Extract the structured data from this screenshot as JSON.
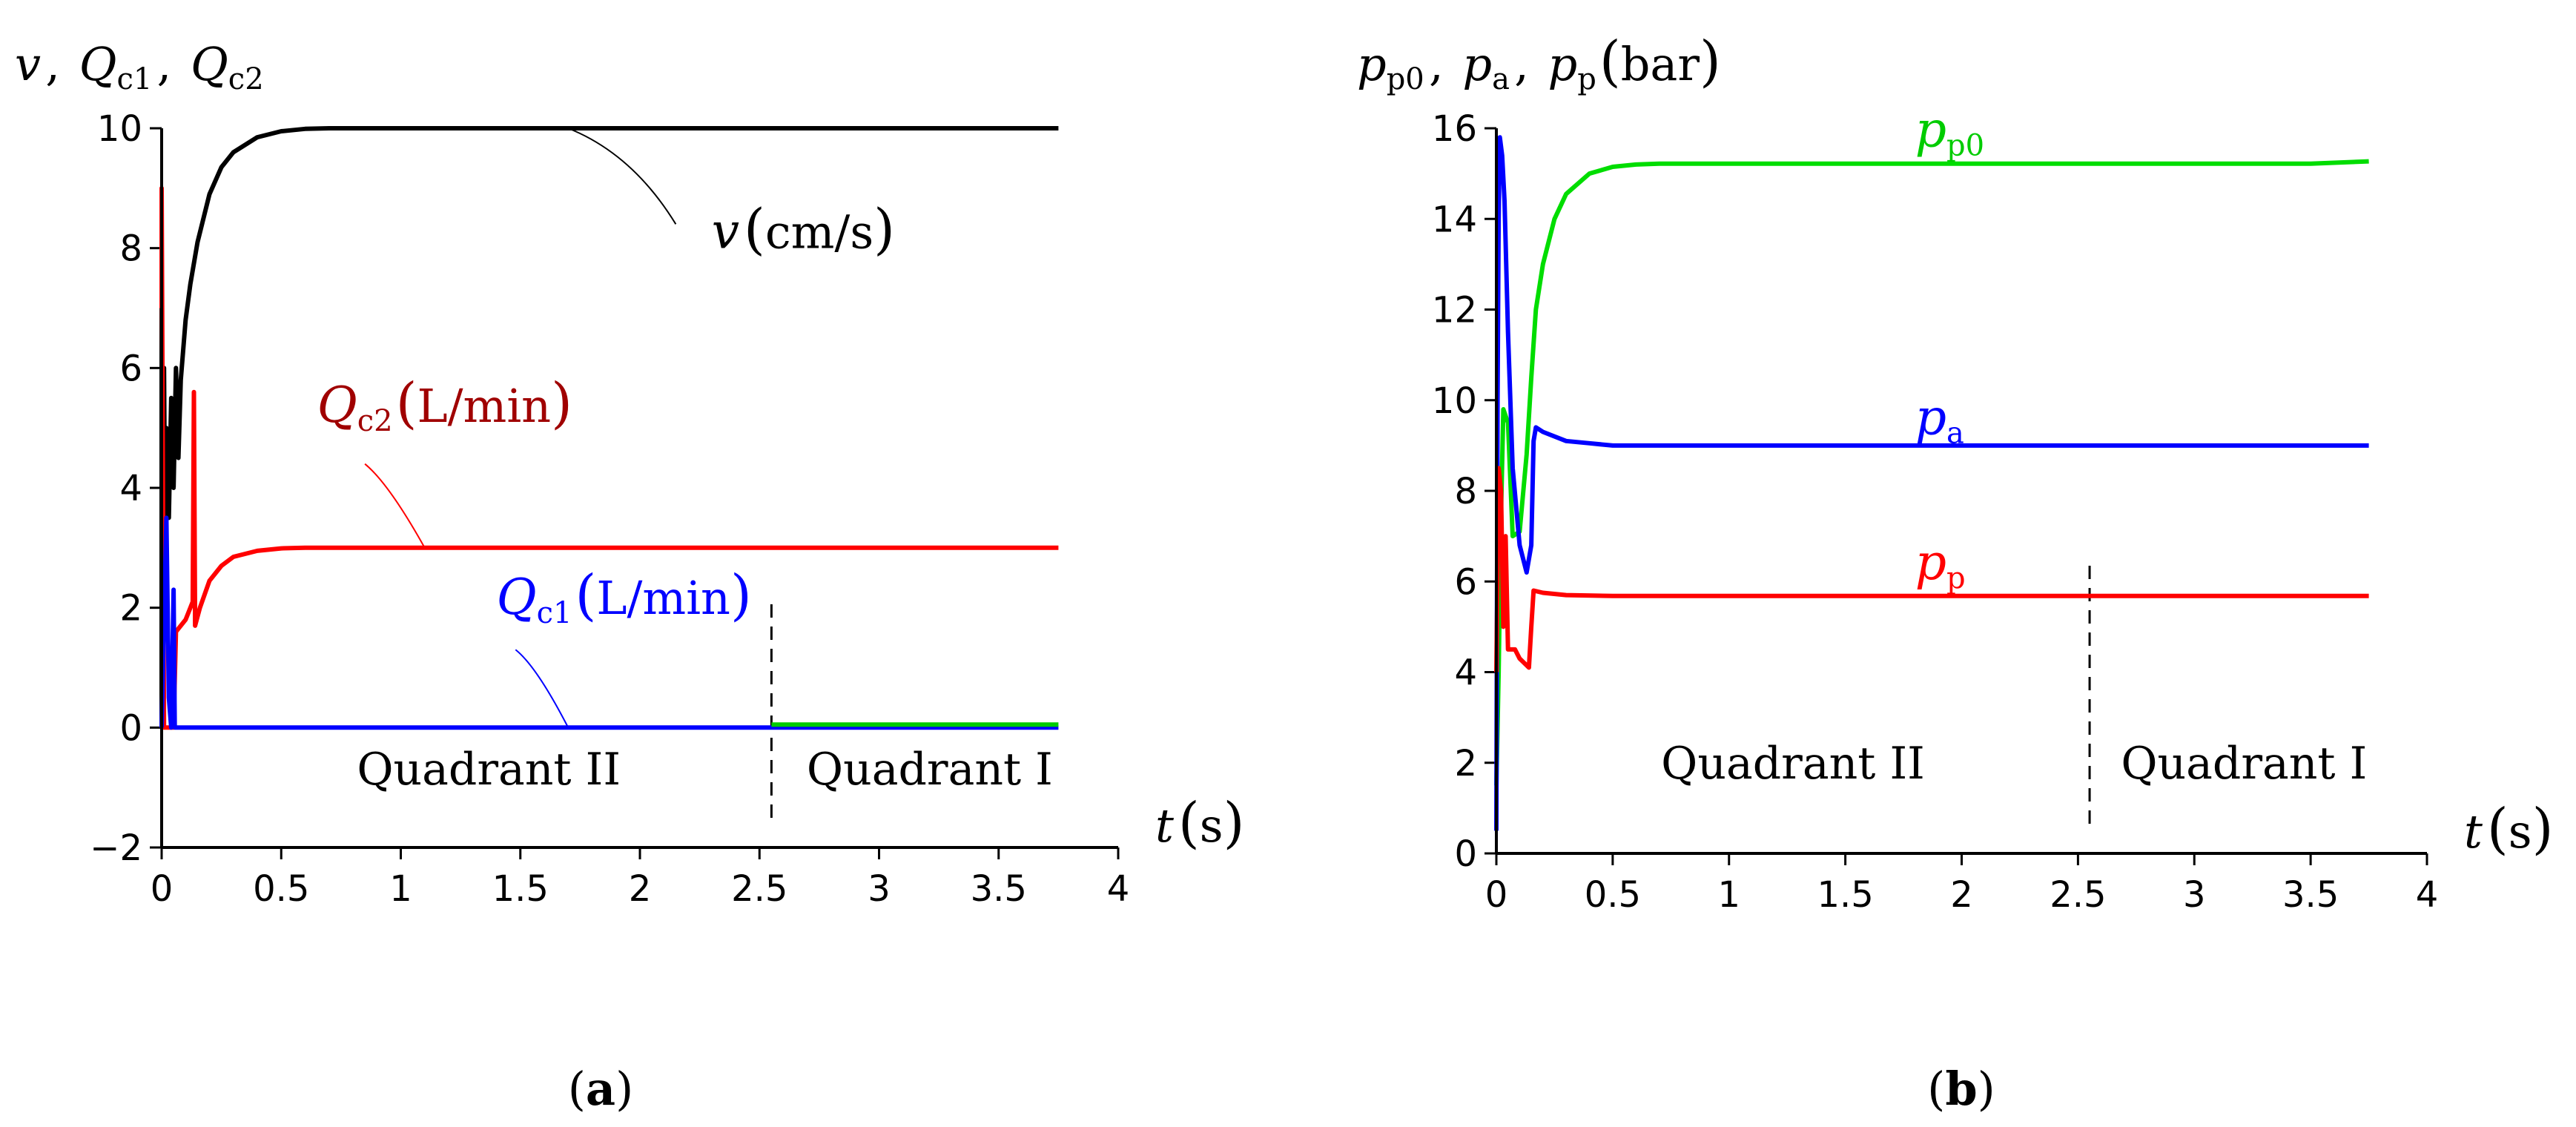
{
  "chart_data": [
    {
      "panel": "(a)",
      "panel_letter": "a",
      "type": "line",
      "ylabel": "v , Qc1 , Qc2",
      "ylabel_parts": {
        "v": "v",
        "Q": "Q",
        "c1": "c1",
        "c2": "c2"
      },
      "xlabel": "t (s)",
      "xlabel_parts": {
        "t": "t",
        "unit": "s"
      },
      "xlim": [
        0,
        4
      ],
      "ylim": [
        -2,
        10
      ],
      "x_ticks": [
        "0",
        "0.5",
        "1",
        "1.5",
        "2",
        "2.5",
        "3",
        "3.5",
        "4"
      ],
      "y_ticks": [
        "−2",
        "0",
        "2",
        "4",
        "6",
        "8",
        "10"
      ],
      "regions": [
        {
          "label": "Quadrant II",
          "x_start": 0,
          "x_end": 2.55
        },
        {
          "label": "Quadrant I",
          "x_start": 2.55,
          "x_end": 3.75
        }
      ],
      "divider_x": 2.55,
      "series": [
        {
          "label_var": "v",
          "label_sub": "",
          "label_unit": "cm/s",
          "color": "#000000",
          "points": [
            [
              0,
              0
            ],
            [
              0,
              8
            ],
            [
              0.005,
              2
            ],
            [
              0.01,
              6
            ],
            [
              0.015,
              3
            ],
            [
              0.02,
              5
            ],
            [
              0.03,
              3.5
            ],
            [
              0.04,
              5.5
            ],
            [
              0.05,
              4
            ],
            [
              0.06,
              6
            ],
            [
              0.07,
              4.5
            ],
            [
              0.08,
              5.8
            ],
            [
              0.1,
              6.8
            ],
            [
              0.12,
              7.4
            ],
            [
              0.15,
              8.1
            ],
            [
              0.2,
              8.9
            ],
            [
              0.25,
              9.35
            ],
            [
              0.3,
              9.6
            ],
            [
              0.4,
              9.85
            ],
            [
              0.5,
              9.95
            ],
            [
              0.6,
              9.99
            ],
            [
              0.7,
              10
            ],
            [
              3.75,
              10
            ]
          ]
        },
        {
          "label_var": "Q",
          "label_sub": "c2",
          "label_unit": "L/min",
          "color": "#ff0000",
          "points": [
            [
              0,
              7
            ],
            [
              0,
              9
            ],
            [
              0.01,
              0
            ],
            [
              0.05,
              0
            ],
            [
              0.06,
              1.6
            ],
            [
              0.1,
              1.8
            ],
            [
              0.13,
              2.1
            ],
            [
              0.135,
              5.6
            ],
            [
              0.14,
              1.7
            ],
            [
              0.16,
              2.0
            ],
            [
              0.2,
              2.45
            ],
            [
              0.25,
              2.7
            ],
            [
              0.3,
              2.85
            ],
            [
              0.4,
              2.95
            ],
            [
              0.5,
              2.99
            ],
            [
              0.6,
              3
            ],
            [
              3.75,
              3
            ]
          ]
        },
        {
          "label_var": "Q",
          "label_sub": "c1",
          "label_unit": "L/min",
          "color": "#0000ff",
          "points": [
            [
              0,
              0
            ],
            [
              0.02,
              3.5
            ],
            [
              0.03,
              0.5
            ],
            [
              0.04,
              0
            ],
            [
              0.05,
              2.3
            ],
            [
              0.055,
              0
            ],
            [
              0.1,
              0
            ],
            [
              3.75,
              0
            ]
          ]
        },
        {
          "label_var": "",
          "label_sub": "",
          "label_unit": "",
          "color": "#00cc00",
          "points": [
            [
              2.55,
              0.05
            ],
            [
              3.75,
              0.05
            ]
          ]
        }
      ],
      "annotations": [
        {
          "series": 0,
          "text_x": 2.3,
          "text_y": 8.0,
          "leader": [
            [
              1.7,
              10
            ],
            [
              2.15,
              8.4
            ]
          ]
        },
        {
          "series": 1,
          "text_x": 0.65,
          "text_y": 5.1,
          "leader": [
            [
              1.1,
              3.0
            ],
            [
              0.85,
              4.4
            ]
          ]
        },
        {
          "series": 2,
          "text_x": 1.4,
          "text_y": 1.9,
          "leader": [
            [
              1.7,
              0
            ],
            [
              1.48,
              1.3
            ]
          ]
        }
      ]
    },
    {
      "panel": "(b)",
      "panel_letter": "b",
      "type": "line",
      "ylabel": "pp0 , pa , pp (bar)",
      "ylabel_parts": {
        "p": "p",
        "p0": "p0",
        "a": "a",
        "psub": "p",
        "unit": "bar"
      },
      "xlabel": "t (s)",
      "xlabel_parts": {
        "t": "t",
        "unit": "s"
      },
      "xlim": [
        0,
        4
      ],
      "ylim": [
        0,
        16
      ],
      "x_ticks": [
        "0",
        "0.5",
        "1",
        "1.5",
        "2",
        "2.5",
        "3",
        "3.5",
        "4"
      ],
      "y_ticks": [
        "0",
        "2",
        "4",
        "6",
        "8",
        "10",
        "12",
        "14",
        "16"
      ],
      "regions": [
        {
          "label": "Quadrant II",
          "x_start": 0,
          "x_end": 2.55
        },
        {
          "label": "Quadrant I",
          "x_start": 2.55,
          "x_end": 3.75
        }
      ],
      "divider_x": 2.55,
      "series": [
        {
          "label_var": "p",
          "label_sub": "p0",
          "label_unit": "",
          "color": "#00dd00",
          "points": [
            [
              0,
              1.5
            ],
            [
              0.01,
              4
            ],
            [
              0.02,
              7.5
            ],
            [
              0.03,
              9.8
            ],
            [
              0.05,
              9.5
            ],
            [
              0.07,
              7.0
            ],
            [
              0.1,
              7.1
            ],
            [
              0.13,
              8.8
            ],
            [
              0.15,
              10.5
            ],
            [
              0.17,
              12.0
            ],
            [
              0.2,
              13.0
            ],
            [
              0.25,
              14.0
            ],
            [
              0.3,
              14.55
            ],
            [
              0.4,
              15.0
            ],
            [
              0.5,
              15.15
            ],
            [
              0.6,
              15.2
            ],
            [
              0.7,
              15.22
            ],
            [
              3.5,
              15.22
            ],
            [
              3.75,
              15.27
            ]
          ]
        },
        {
          "label_var": "p",
          "label_sub": "a",
          "label_unit": "",
          "color": "#0000ff",
          "points": [
            [
              0,
              0.5
            ],
            [
              0.005,
              10
            ],
            [
              0.01,
              14
            ],
            [
              0.015,
              15.8
            ],
            [
              0.025,
              15.4
            ],
            [
              0.035,
              14.4
            ],
            [
              0.05,
              11.5
            ],
            [
              0.07,
              8.5
            ],
            [
              0.1,
              6.8
            ],
            [
              0.13,
              6.2
            ],
            [
              0.15,
              6.8
            ],
            [
              0.16,
              9.1
            ],
            [
              0.17,
              9.4
            ],
            [
              0.2,
              9.3
            ],
            [
              0.3,
              9.1
            ],
            [
              0.4,
              9.05
            ],
            [
              0.5,
              9.0
            ],
            [
              3.75,
              9.0
            ]
          ]
        },
        {
          "label_var": "p",
          "label_sub": "p",
          "label_unit": "",
          "color": "#ff0000",
          "points": [
            [
              0,
              4
            ],
            [
              0.01,
              8.5
            ],
            [
              0.02,
              8.0
            ],
            [
              0.03,
              5.0
            ],
            [
              0.04,
              7.0
            ],
            [
              0.05,
              4.5
            ],
            [
              0.08,
              4.5
            ],
            [
              0.1,
              4.3
            ],
            [
              0.12,
              4.2
            ],
            [
              0.14,
              4.1
            ],
            [
              0.15,
              5.0
            ],
            [
              0.16,
              5.8
            ],
            [
              0.2,
              5.75
            ],
            [
              0.3,
              5.7
            ],
            [
              0.5,
              5.68
            ],
            [
              3.75,
              5.68
            ]
          ]
        }
      ],
      "annotations": [
        {
          "series": 0,
          "text_x": 1.8,
          "text_y": 15.6
        },
        {
          "series": 1,
          "text_x": 1.8,
          "text_y": 9.25
        },
        {
          "series": 2,
          "text_x": 1.8,
          "text_y": 6.05
        }
      ]
    }
  ]
}
